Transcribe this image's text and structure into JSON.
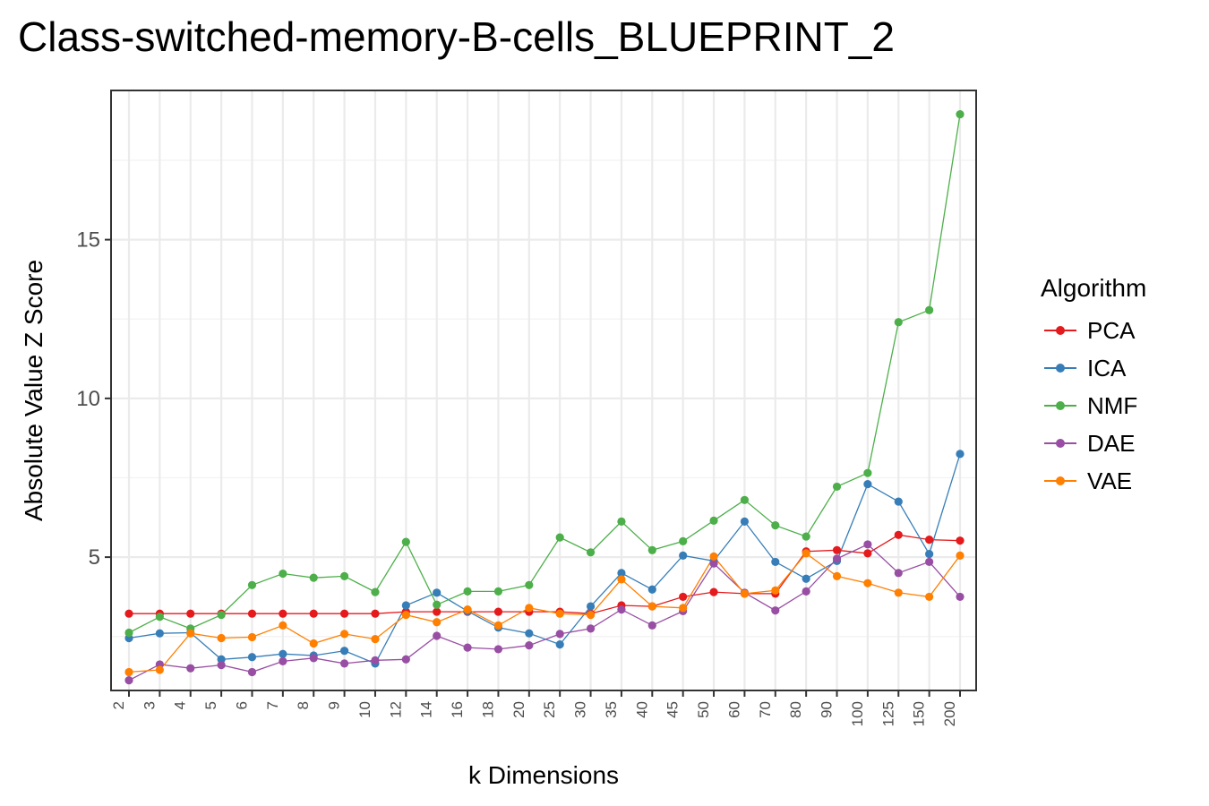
{
  "title": "Class-switched-memory-B-cells_BLUEPRINT_2",
  "chart_data": {
    "type": "line",
    "title": "Class-switched-memory-B-cells_BLUEPRINT_2",
    "xlabel": "k Dimensions",
    "ylabel": "Absolute Value Z Score",
    "categories": [
      "2",
      "3",
      "4",
      "5",
      "6",
      "7",
      "8",
      "9",
      "10",
      "12",
      "14",
      "16",
      "18",
      "20",
      "25",
      "30",
      "35",
      "40",
      "45",
      "50",
      "60",
      "70",
      "80",
      "90",
      "100",
      "125",
      "150",
      "200"
    ],
    "ylim": [
      0.8,
      19.7
    ],
    "yticks": [
      5,
      10,
      15
    ],
    "grid": true,
    "legend": {
      "title": "Algorithm",
      "position": "right"
    },
    "series": [
      {
        "name": "PCA",
        "color": "#E41A1C",
        "values": [
          3.22,
          3.22,
          3.22,
          3.22,
          3.22,
          3.22,
          3.22,
          3.22,
          3.22,
          3.28,
          3.28,
          3.28,
          3.28,
          3.28,
          3.28,
          3.22,
          3.48,
          3.45,
          3.75,
          3.9,
          3.85,
          3.85,
          5.18,
          5.22,
          5.12,
          5.7,
          5.55,
          5.52
        ]
      },
      {
        "name": "ICA",
        "color": "#377EB8",
        "values": [
          2.45,
          2.6,
          2.62,
          1.78,
          1.85,
          1.95,
          1.9,
          2.05,
          1.65,
          3.48,
          3.88,
          3.3,
          2.78,
          2.6,
          2.25,
          3.45,
          4.5,
          3.98,
          5.05,
          4.88,
          6.12,
          4.85,
          4.32,
          4.88,
          7.3,
          6.75,
          5.1,
          8.25
        ]
      },
      {
        "name": "NMF",
        "color": "#4DAF4A",
        "values": [
          2.62,
          3.12,
          2.75,
          3.18,
          4.12,
          4.48,
          4.35,
          4.4,
          3.9,
          5.48,
          3.5,
          3.92,
          3.92,
          4.12,
          5.62,
          5.15,
          6.12,
          5.22,
          5.5,
          6.15,
          6.8,
          6.0,
          5.65,
          7.22,
          7.65,
          12.4,
          12.78,
          18.95
        ]
      },
      {
        "name": "DAE",
        "color": "#984EA3",
        "values": [
          1.12,
          1.62,
          1.5,
          1.6,
          1.38,
          1.72,
          1.82,
          1.65,
          1.75,
          1.78,
          2.52,
          2.15,
          2.1,
          2.22,
          2.58,
          2.75,
          3.35,
          2.85,
          3.3,
          4.8,
          3.88,
          3.32,
          3.92,
          4.95,
          5.4,
          4.5,
          4.85,
          3.75
        ]
      },
      {
        "name": "VAE",
        "color": "#FF7F00",
        "values": [
          1.38,
          1.45,
          2.6,
          2.45,
          2.48,
          2.85,
          2.28,
          2.58,
          2.42,
          3.18,
          2.95,
          3.35,
          2.85,
          3.4,
          3.22,
          3.18,
          4.3,
          3.45,
          3.4,
          5.02,
          3.85,
          3.95,
          5.12,
          4.4,
          4.18,
          3.88,
          3.75,
          5.05
        ]
      }
    ]
  }
}
